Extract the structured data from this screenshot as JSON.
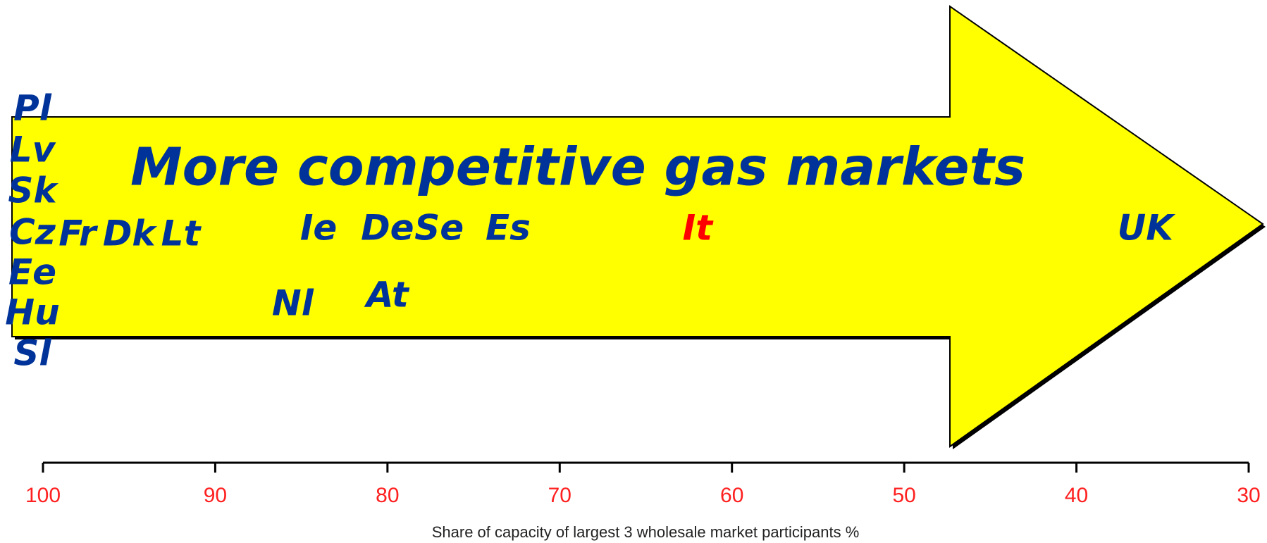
{
  "chart_data": {
    "type": "label",
    "annotation": "More competitive gas markets",
    "xlabel": "Share of capacity of largest 3 wholesale market participants   %",
    "xlim": [
      100,
      30
    ],
    "xticks": [
      100,
      90,
      80,
      70,
      60,
      50,
      40,
      30
    ],
    "points": [
      {
        "label": "Pl",
        "x": 100,
        "color": "#003399"
      },
      {
        "label": "Lv",
        "x": 100,
        "color": "#003399"
      },
      {
        "label": "Sk",
        "x": 100,
        "color": "#003399"
      },
      {
        "label": "Cz",
        "x": 100,
        "color": "#003399"
      },
      {
        "label": "Ee",
        "x": 100,
        "color": "#003399"
      },
      {
        "label": "Hu",
        "x": 100,
        "color": "#003399"
      },
      {
        "label": "Sl",
        "x": 100,
        "color": "#003399"
      },
      {
        "label": "Fr",
        "x": 98,
        "color": "#003399"
      },
      {
        "label": "Dk",
        "x": 95,
        "color": "#003399"
      },
      {
        "label": "Lt",
        "x": 92,
        "color": "#003399"
      },
      {
        "label": "Ie",
        "x": 84,
        "color": "#003399"
      },
      {
        "label": "De",
        "x": 80,
        "color": "#003399"
      },
      {
        "label": "Se",
        "x": 77,
        "color": "#003399"
      },
      {
        "label": "Es",
        "x": 73,
        "color": "#003399"
      },
      {
        "label": "It",
        "x": 62,
        "color": "#ff0000"
      },
      {
        "label": "UK",
        "x": 36,
        "color": "#003399"
      },
      {
        "label": "Nl",
        "x": 85.5,
        "color": "#003399"
      },
      {
        "label": "At",
        "x": 80,
        "color": "#003399"
      }
    ]
  }
}
